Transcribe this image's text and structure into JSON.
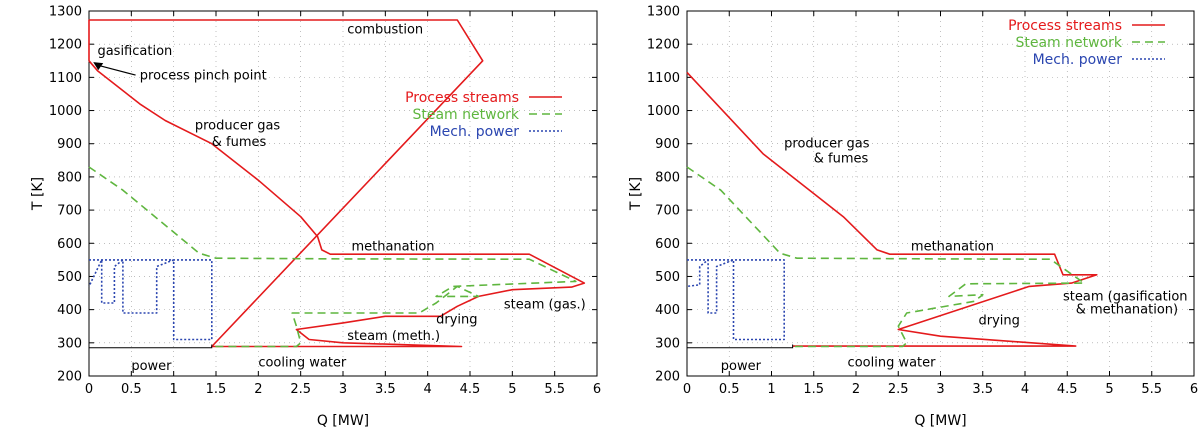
{
  "colors": {
    "process": "#e41a1c",
    "steam": "#5fb63f",
    "mech": "#2b46b0",
    "grid": "#999999"
  },
  "chart_data": [
    {
      "type": "line",
      "xlabel": "Q [MW]",
      "ylabel": "T [K]",
      "xlim": [
        0,
        6
      ],
      "ylim": [
        200,
        1300
      ],
      "xticks": [
        "0",
        "0.5",
        "1",
        "1.5",
        "2",
        "2.5",
        "3",
        "3.5",
        "4",
        "4.5",
        "5",
        "5.5",
        "6"
      ],
      "yticks": [
        "200",
        "300",
        "400",
        "500",
        "600",
        "700",
        "800",
        "900",
        "1000",
        "1100",
        "1200",
        "1300"
      ],
      "grid": true,
      "legend_position": "right, below annotations",
      "legend": [
        {
          "label": "Process streams",
          "style": "solid",
          "color": "#e41a1c"
        },
        {
          "label": "Steam network",
          "style": "dashed",
          "color": "#5fb63f"
        },
        {
          "label": "Mech. power",
          "style": "dotted",
          "color": "#2b46b0"
        }
      ],
      "series": [
        {
          "name": "Process streams",
          "points": [
            [
              0,
              1150
            ],
            [
              0.1,
              1120
            ],
            [
              0.6,
              1020
            ],
            [
              0.9,
              970
            ],
            [
              1.45,
              900
            ],
            [
              2,
              790
            ],
            [
              2.5,
              680
            ],
            [
              2.7,
              620
            ],
            [
              2.75,
              580
            ],
            [
              2.85,
              567
            ],
            [
              5.2,
              567
            ],
            [
              5.85,
              480
            ],
            [
              5.7,
              468
            ],
            [
              5.0,
              460
            ],
            [
              4.6,
              440
            ],
            [
              4.35,
              410
            ],
            [
              4.15,
              380
            ],
            [
              3.5,
              380
            ],
            [
              3,
              360
            ],
            [
              2.45,
              340
            ],
            [
              2.6,
              310
            ],
            [
              3.0,
              300
            ],
            [
              4.4,
              289
            ],
            [
              1.45,
              289
            ],
            [
              4.65,
              1150
            ],
            [
              4.35,
              1273
            ],
            [
              0,
              1273
            ],
            [
              0,
              1150
            ]
          ]
        },
        {
          "name": "Steam network",
          "points": [
            [
              0,
              830
            ],
            [
              0.4,
              760
            ],
            [
              1.3,
              570
            ],
            [
              1.5,
              555
            ],
            [
              3,
              553
            ],
            [
              5.2,
              552
            ],
            [
              5.75,
              485
            ],
            [
              4.3,
              470
            ],
            [
              4.1,
              440
            ],
            [
              4.6,
              440
            ],
            [
              4.35,
              470
            ],
            [
              4.1,
              420
            ],
            [
              3.9,
              390
            ],
            [
              2.4,
              390
            ],
            [
              2.45,
              350
            ],
            [
              2.5,
              300
            ],
            [
              2.45,
              289
            ],
            [
              1.45,
              289
            ]
          ]
        },
        {
          "name": "Mech. power",
          "points": [
            [
              0,
              550
            ],
            [
              1.45,
              550
            ],
            [
              1.45,
              310
            ],
            [
              1.0,
              310
            ],
            [
              1.0,
              550
            ],
            [
              0.8,
              530
            ],
            [
              0.8,
              390
            ],
            [
              0.4,
              390
            ],
            [
              0.4,
              550
            ],
            [
              0.3,
              530
            ],
            [
              0.3,
              420
            ],
            [
              0.15,
              420
            ],
            [
              0.15,
              550
            ],
            [
              0,
              470
            ]
          ]
        }
      ],
      "annotations": [
        {
          "text": "combustion",
          "x": 3.05,
          "y": 1245
        },
        {
          "text": "gasification",
          "x": 0.1,
          "y": 1180
        },
        {
          "text": "process pinch point",
          "x": 0.6,
          "y": 1105
        },
        {
          "text": "producer gas",
          "x": 1.25,
          "y": 955
        },
        {
          "text": "& fumes",
          "x": 1.45,
          "y": 905
        },
        {
          "text": "methanation",
          "x": 3.1,
          "y": 590
        },
        {
          "text": "steam (gas.)",
          "x": 4.9,
          "y": 415
        },
        {
          "text": "drying",
          "x": 4.1,
          "y": 370
        },
        {
          "text": "steam (meth.)",
          "x": 3.05,
          "y": 320
        },
        {
          "text": "power",
          "x": 0.5,
          "y": 230
        },
        {
          "text": "cooling water",
          "x": 2.0,
          "y": 240
        }
      ],
      "brace": {
        "x1": 0,
        "x2": 1.45,
        "label": "power"
      }
    },
    {
      "type": "line",
      "xlabel": "Q [MW]",
      "ylabel": "T [K]",
      "xlim": [
        0,
        6
      ],
      "ylim": [
        200,
        1300
      ],
      "xticks": [
        "0",
        "0.5",
        "1",
        "1.5",
        "2",
        "2.5",
        "3",
        "3.5",
        "4",
        "4.5",
        "5",
        "5.5",
        "6"
      ],
      "yticks": [
        "200",
        "300",
        "400",
        "500",
        "600",
        "700",
        "800",
        "900",
        "1000",
        "1100",
        "1200",
        "1300"
      ],
      "grid": true,
      "legend_position": "top-right",
      "legend": [
        {
          "label": "Process streams",
          "style": "solid",
          "color": "#e41a1c"
        },
        {
          "label": "Steam network",
          "style": "dashed",
          "color": "#5fb63f"
        },
        {
          "label": "Mech. power",
          "style": "dotted",
          "color": "#2b46b0"
        }
      ],
      "series": [
        {
          "name": "Process streams",
          "points": [
            [
              0,
              1115
            ],
            [
              0.9,
              870
            ],
            [
              1.85,
              680
            ],
            [
              2.25,
              580
            ],
            [
              2.4,
              567
            ],
            [
              4.35,
              567
            ],
            [
              4.45,
              505
            ],
            [
              4.85,
              505
            ],
            [
              4.55,
              480
            ],
            [
              4.05,
              470
            ],
            [
              2.5,
              340
            ],
            [
              3.0,
              320
            ],
            [
              4.6,
              290
            ],
            [
              1.25,
              290
            ]
          ]
        },
        {
          "name": "Steam network",
          "points": [
            [
              0,
              830
            ],
            [
              0.4,
              760
            ],
            [
              1.1,
              570
            ],
            [
              1.3,
              555
            ],
            [
              3,
              553
            ],
            [
              4.3,
              552
            ],
            [
              4.7,
              480
            ],
            [
              3.3,
              478
            ],
            [
              3.1,
              440
            ],
            [
              3.5,
              445
            ],
            [
              3.4,
              425
            ],
            [
              2.6,
              390
            ],
            [
              2.5,
              350
            ],
            [
              2.6,
              300
            ],
            [
              2.55,
              289
            ],
            [
              1.25,
              289
            ]
          ]
        },
        {
          "name": "Mech. power",
          "points": [
            [
              0,
              550
            ],
            [
              1.15,
              550
            ],
            [
              1.15,
              310
            ],
            [
              0.55,
              310
            ],
            [
              0.55,
              550
            ],
            [
              0.35,
              530
            ],
            [
              0.35,
              390
            ],
            [
              0.25,
              390
            ],
            [
              0.25,
              550
            ],
            [
              0.15,
              530
            ],
            [
              0.15,
              475
            ],
            [
              0,
              470
            ]
          ]
        }
      ],
      "annotations": [
        {
          "text": "producer gas",
          "x": 1.15,
          "y": 900
        },
        {
          "text": "& fumes",
          "x": 1.5,
          "y": 855
        },
        {
          "text": "methanation",
          "x": 2.65,
          "y": 590
        },
        {
          "text": "steam (gasification",
          "x": 4.45,
          "y": 440
        },
        {
          "text": "& methanation)",
          "x": 4.6,
          "y": 400
        },
        {
          "text": "drying",
          "x": 3.45,
          "y": 368
        },
        {
          "text": "power",
          "x": 0.4,
          "y": 230
        },
        {
          "text": "cooling water",
          "x": 1.9,
          "y": 240
        }
      ],
      "brace": {
        "x1": 0,
        "x2": 1.25,
        "label": "power"
      }
    }
  ]
}
